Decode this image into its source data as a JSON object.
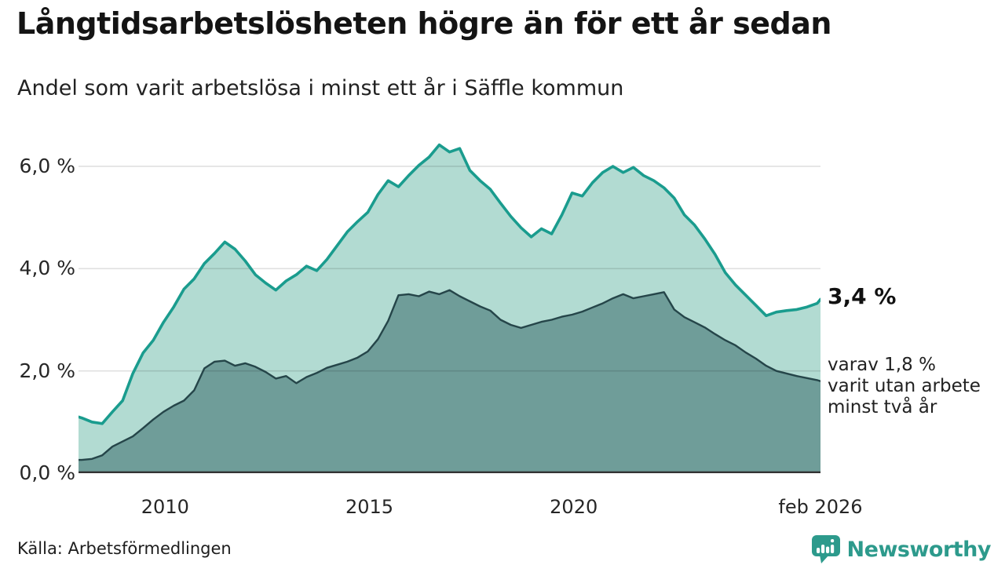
{
  "header": {
    "title": "Långtidsarbetslösheten högre än för ett år sedan",
    "subtitle": "Andel som varit arbetslösa i minst ett år i Säffle kommun"
  },
  "annotations": {
    "end_value_label": "3,4 %",
    "secondary_line1": "varav 1,8 %",
    "secondary_line2": "varit utan arbete",
    "secondary_line3": "minst två år"
  },
  "footer": {
    "source": "Källa: Arbetsförmedlingen",
    "brand": "Newsworthy"
  },
  "colors": {
    "line_1yr": "#1a9c8e",
    "fill_1yr": "#b2dbd2",
    "line_2yr": "#254549",
    "fill_2yr": "#6f9d99",
    "gridline": "rgba(0,0,0,0.12)",
    "baseline": "#333333",
    "brand_teal": "#2d9a8c"
  },
  "chart_data": {
    "type": "area",
    "title": "Långtidsarbetslösheten högre än för ett år sedan",
    "subtitle": "Andel som varit arbetslösa i minst ett år i Säffle kommun",
    "xlabel": "",
    "ylabel": "",
    "x_unit": "decimal_year",
    "xlim": [
      2007.92,
      2026.08
    ],
    "ylim": [
      0,
      6.69
    ],
    "grid": "horizontal",
    "legend": "none",
    "y_ticks": [
      {
        "label": "0,0 %",
        "value": 0
      },
      {
        "label": "2,0 %",
        "value": 2
      },
      {
        "label": "4,0 %",
        "value": 4
      },
      {
        "label": "6,0 %",
        "value": 6
      }
    ],
    "x_ticks": [
      {
        "label": "2010",
        "value": 2010.04
      },
      {
        "label": "2015",
        "value": 2015.04
      },
      {
        "label": "2020",
        "value": 2020.04
      },
      {
        "label": "feb 2026",
        "value": 2026.08
      }
    ],
    "x": [
      2007.92,
      2008.0,
      2008.25,
      2008.5,
      2008.75,
      2009.0,
      2009.25,
      2009.5,
      2009.75,
      2010.0,
      2010.25,
      2010.5,
      2010.75,
      2011.0,
      2011.25,
      2011.5,
      2011.75,
      2012.0,
      2012.25,
      2012.5,
      2012.75,
      2013.0,
      2013.25,
      2013.5,
      2013.75,
      2014.0,
      2014.25,
      2014.5,
      2014.75,
      2015.0,
      2015.25,
      2015.5,
      2015.75,
      2016.0,
      2016.25,
      2016.5,
      2016.75,
      2017.0,
      2017.25,
      2017.5,
      2017.75,
      2018.0,
      2018.25,
      2018.5,
      2018.75,
      2019.0,
      2019.25,
      2019.5,
      2019.75,
      2020.0,
      2020.25,
      2020.5,
      2020.75,
      2021.0,
      2021.25,
      2021.5,
      2021.75,
      2022.0,
      2022.25,
      2022.5,
      2022.75,
      2023.0,
      2023.25,
      2023.5,
      2023.75,
      2024.0,
      2024.25,
      2024.5,
      2024.75,
      2025.0,
      2025.25,
      2025.5,
      2025.75,
      2026.0,
      2026.08
    ],
    "series": [
      {
        "name": "Andel som varit arbetslösa minst ett år",
        "end_label": "3,4 %",
        "end_value": 3.4,
        "values": [
          1.1,
          1.08,
          1.0,
          0.97,
          1.2,
          1.42,
          1.95,
          2.35,
          2.6,
          2.95,
          3.25,
          3.6,
          3.8,
          4.1,
          4.3,
          4.52,
          4.38,
          4.15,
          3.88,
          3.72,
          3.58,
          3.76,
          3.88,
          4.05,
          3.96,
          4.18,
          4.45,
          4.72,
          4.92,
          5.1,
          5.45,
          5.72,
          5.6,
          5.82,
          6.02,
          6.18,
          6.42,
          6.28,
          6.35,
          5.92,
          5.72,
          5.55,
          5.28,
          5.02,
          4.8,
          4.62,
          4.78,
          4.68,
          5.05,
          5.48,
          5.42,
          5.68,
          5.88,
          6.0,
          5.88,
          5.98,
          5.82,
          5.72,
          5.58,
          5.38,
          5.05,
          4.85,
          4.58,
          4.28,
          3.92,
          3.68,
          3.48,
          3.28,
          3.08,
          3.15,
          3.18,
          3.2,
          3.25,
          3.32,
          3.4
        ]
      },
      {
        "name": "varav arbetslösa minst två år",
        "end_label": "1,8 %",
        "end_value": 1.8,
        "values": [
          0.26,
          0.26,
          0.28,
          0.35,
          0.52,
          0.62,
          0.72,
          0.88,
          1.05,
          1.2,
          1.32,
          1.42,
          1.62,
          2.05,
          2.18,
          2.2,
          2.1,
          2.15,
          2.08,
          1.98,
          1.85,
          1.9,
          1.76,
          1.88,
          1.96,
          2.06,
          2.12,
          2.18,
          2.26,
          2.38,
          2.62,
          2.98,
          3.48,
          3.5,
          3.46,
          3.55,
          3.5,
          3.58,
          3.46,
          3.36,
          3.26,
          3.18,
          3.0,
          2.9,
          2.84,
          2.9,
          2.96,
          3.0,
          3.06,
          3.1,
          3.16,
          3.24,
          3.32,
          3.42,
          3.5,
          3.42,
          3.46,
          3.5,
          3.54,
          3.2,
          3.05,
          2.95,
          2.85,
          2.72,
          2.6,
          2.5,
          2.36,
          2.24,
          2.1,
          2.0,
          1.95,
          1.9,
          1.86,
          1.82,
          1.8
        ]
      }
    ]
  }
}
